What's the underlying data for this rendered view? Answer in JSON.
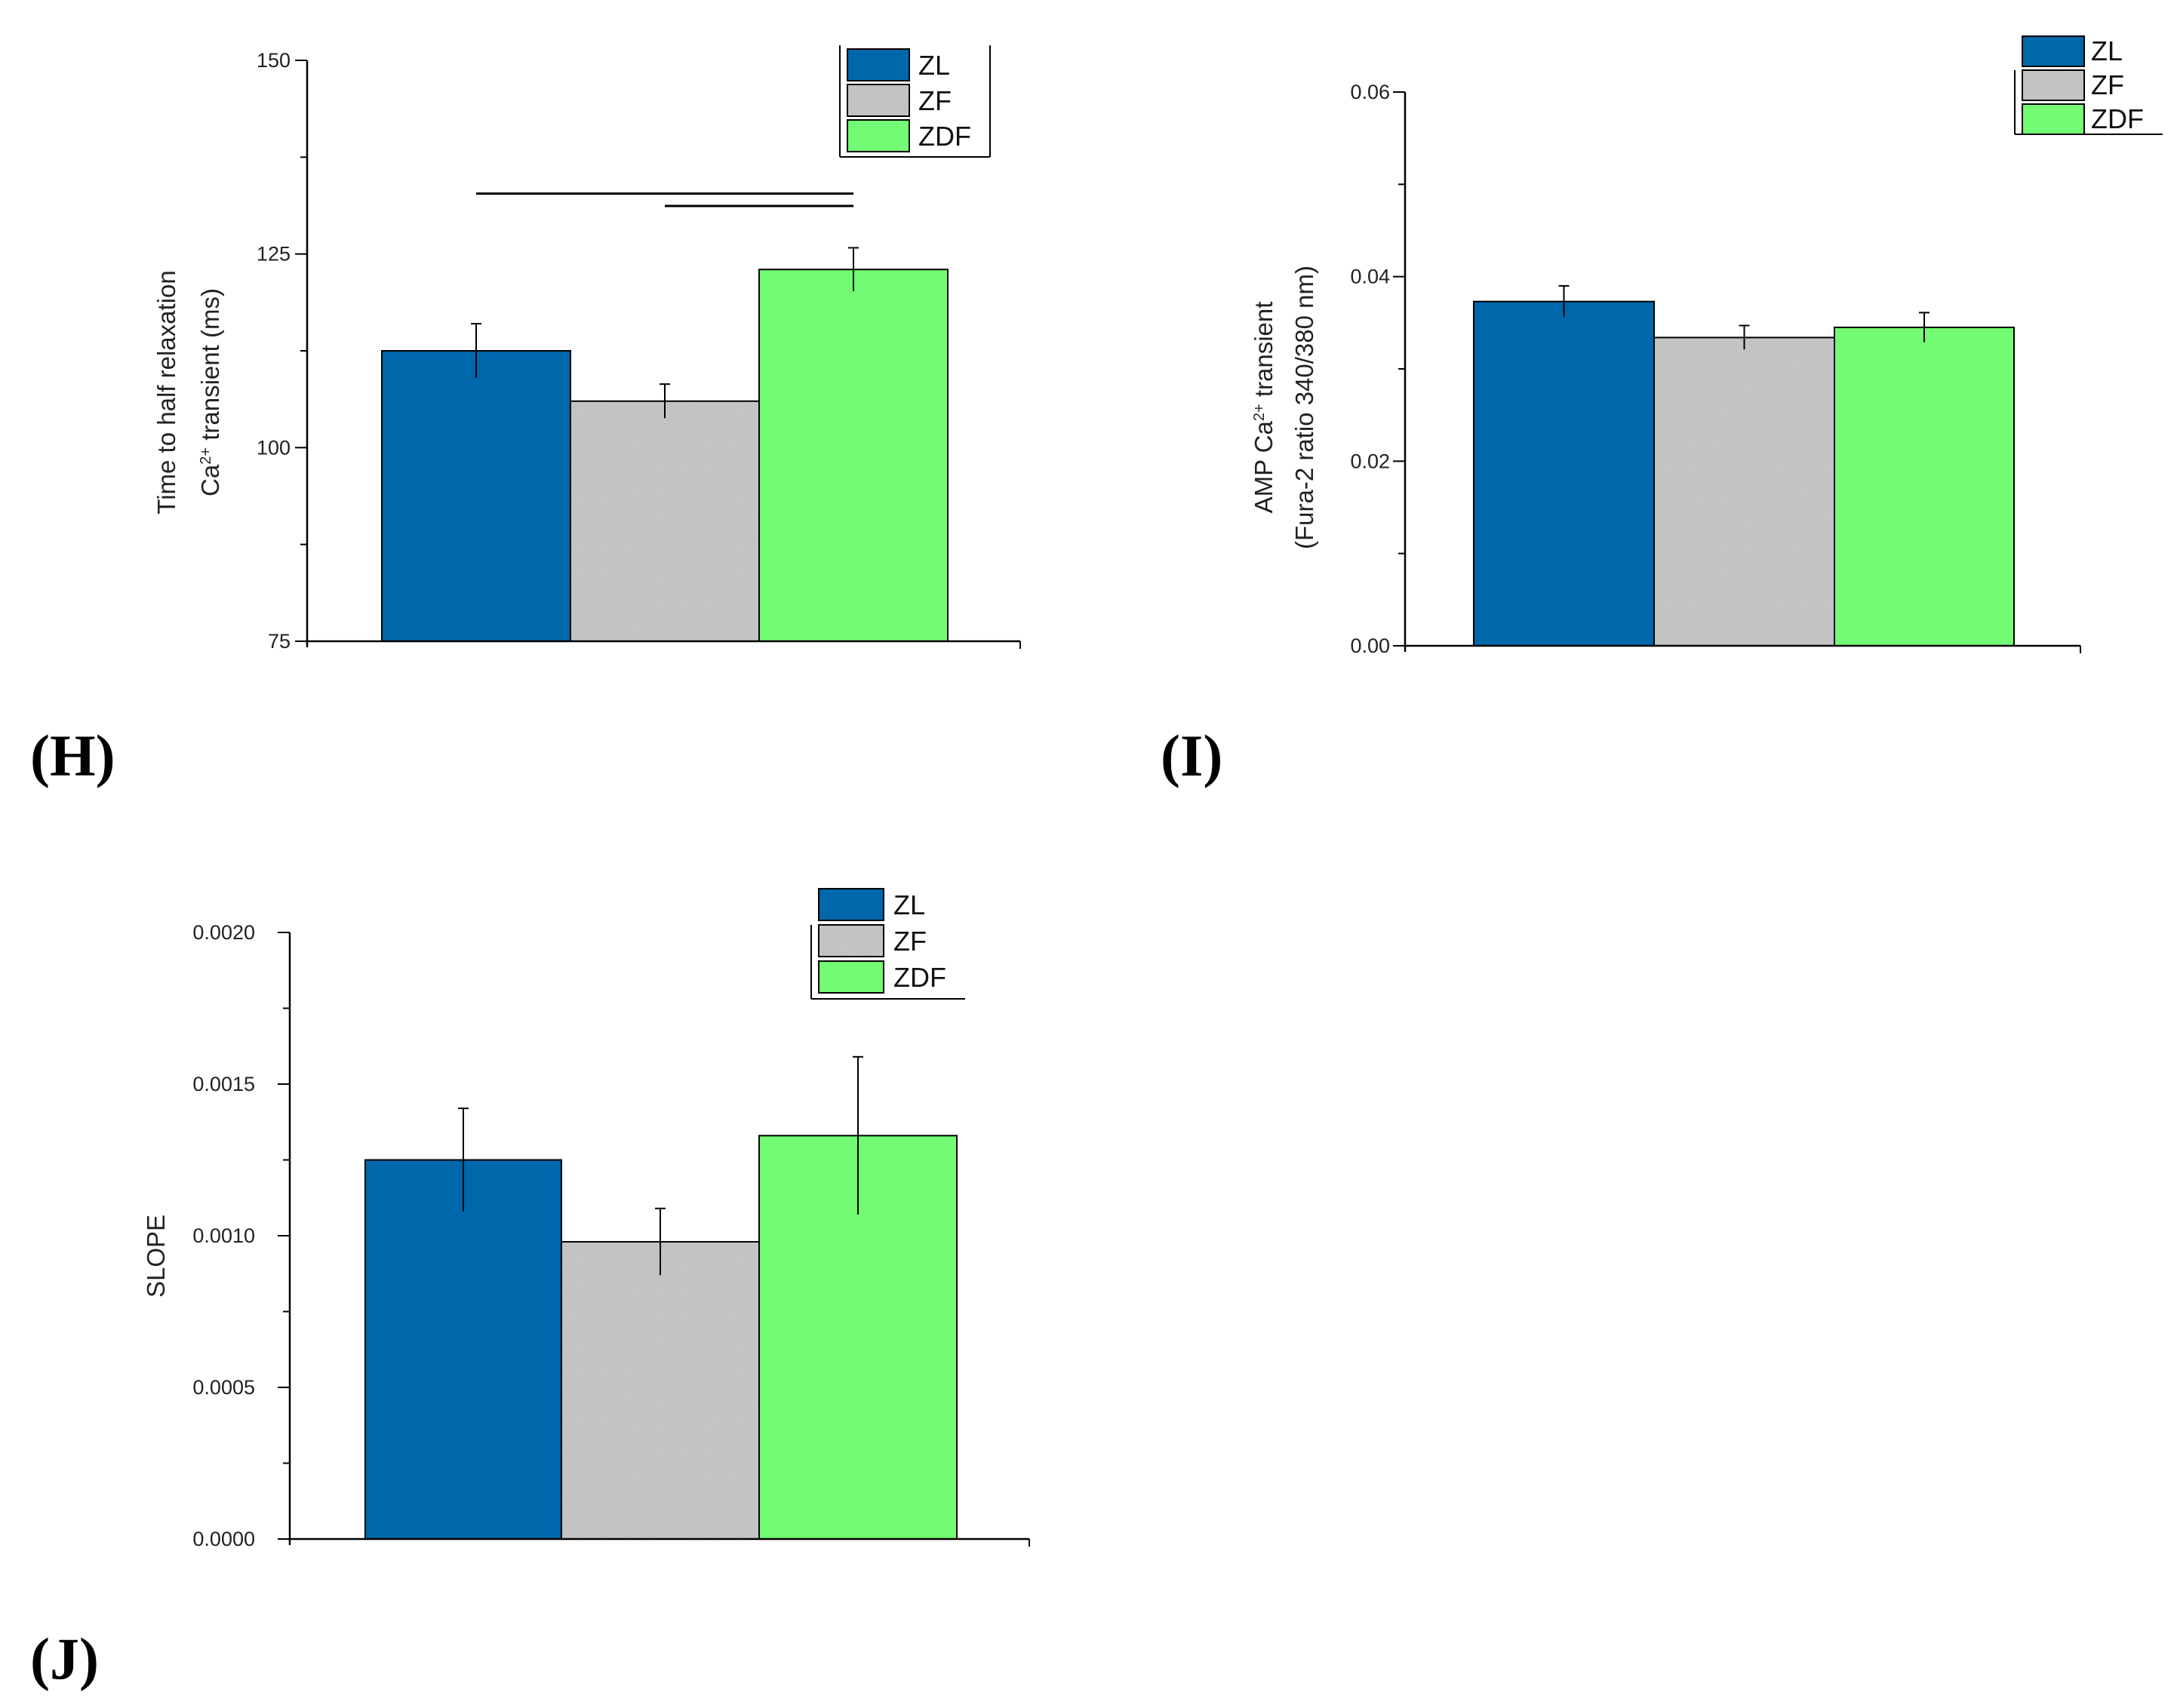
{
  "colors": {
    "ZL": "#0067ab",
    "ZF": "#c6c6c6",
    "ZDF": "#73fc73",
    "axis": "#000000"
  },
  "chart_data": [
    {
      "id": "H",
      "panel_label": "(H)",
      "type": "bar",
      "categories": [
        "ZL",
        "ZF",
        "ZDF"
      ],
      "legend": [
        "ZL",
        "ZF",
        "ZDF"
      ],
      "values": [
        112.5,
        106,
        123
      ],
      "errors": [
        3.5,
        2.2,
        2.8
      ],
      "ylabel_lines": [
        "Time to half relaxation",
        "Ca<sup>2+</sup> transient (ms)"
      ],
      "ylim": [
        75,
        150
      ],
      "yticks": [
        75,
        100,
        125,
        150
      ],
      "ytick_labels": [
        "75",
        "100",
        "125",
        "150"
      ],
      "minor_ticks": true,
      "significance_bars": [
        {
          "from": 0,
          "to": 2,
          "level": 132.8
        },
        {
          "from": 1,
          "to": 2,
          "level": 131.2
        }
      ]
    },
    {
      "id": "I",
      "panel_label": "(I)",
      "type": "bar",
      "categories": [
        "ZL",
        "ZF",
        "ZDF"
      ],
      "legend": [
        "ZL",
        "ZF",
        "ZDF"
      ],
      "values": [
        0.0373,
        0.0334,
        0.0345
      ],
      "errors": [
        0.0017,
        0.0013,
        0.0016
      ],
      "ylabel_lines": [
        "AMP Ca<sup>2+</sup> transient",
        "(Fura-2 ratio 340/380 nm)"
      ],
      "ylim": [
        0,
        0.06
      ],
      "yticks": [
        0,
        0.02,
        0.04,
        0.06
      ],
      "ytick_labels": [
        "0.00",
        "0.02",
        "0.04",
        "0.06"
      ],
      "minor_ticks": true,
      "significance_bars": []
    },
    {
      "id": "J",
      "panel_label": "(J)",
      "type": "bar",
      "categories": [
        "ZL",
        "ZF",
        "ZDF"
      ],
      "legend": [
        "ZL",
        "ZF",
        "ZDF"
      ],
      "values": [
        0.00125,
        0.00098,
        0.00133
      ],
      "errors": [
        0.00017,
        0.00011,
        0.00026
      ],
      "ylabel_lines": [
        "SLOPE"
      ],
      "ylim": [
        0,
        0.002
      ],
      "yticks": [
        0,
        0.0005,
        0.001,
        0.0015,
        0.002
      ],
      "ytick_labels": [
        "0.0000",
        "0.0005",
        "0.0010",
        "0.0015",
        "0.0020"
      ],
      "minor_ticks": true,
      "significance_bars": []
    }
  ]
}
